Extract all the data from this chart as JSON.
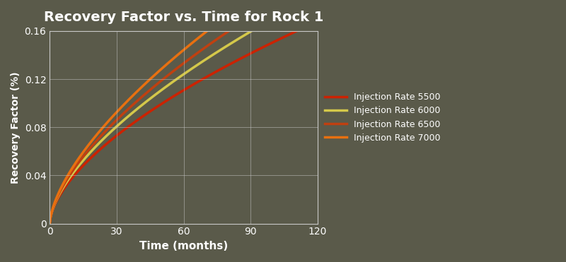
{
  "title": "Recovery Factor vs. Time for Rock 1",
  "xlabel": "Time (months)",
  "ylabel": "Recovery Factor (%)",
  "background_color": "#5a5a4a",
  "plot_bg_color": "#5a5a4a",
  "text_color": "#ffffff",
  "grid_color": "#c8c8c8",
  "x_max": 120,
  "y_max": 0.16,
  "y_ticks": [
    0,
    0.04,
    0.08,
    0.12,
    0.16
  ],
  "x_ticks": [
    0,
    30,
    60,
    90,
    120
  ],
  "series": [
    {
      "label": "Injection Rate 5500",
      "color": "#cc2200",
      "exponent": 0.6,
      "scale": 0.0095
    },
    {
      "label": "Injection Rate 6000",
      "color": "#d4c84a",
      "exponent": 0.62,
      "scale": 0.0098
    },
    {
      "label": "Injection Rate 6500",
      "color": "#c04010",
      "exponent": 0.63,
      "scale": 0.0101
    },
    {
      "label": "Injection Rate 7000",
      "color": "#e87010",
      "exponent": 0.64,
      "scale": 0.0105
    }
  ]
}
